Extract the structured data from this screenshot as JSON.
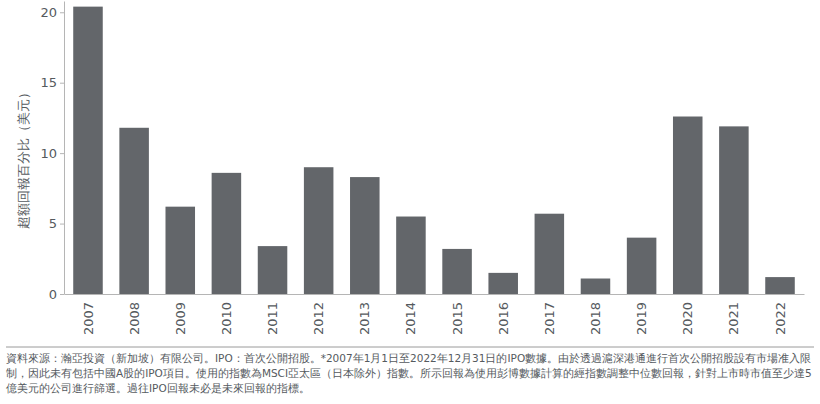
{
  "chart_data": {
    "type": "bar",
    "y_label": "超額回報百分比（美元）",
    "categories": [
      "2007",
      "2008",
      "2009",
      "2010",
      "2011",
      "2012",
      "2013",
      "2014",
      "2015",
      "2016",
      "2017",
      "2018",
      "2019",
      "2020",
      "2021",
      "2022"
    ],
    "values": [
      20.4,
      11.8,
      6.2,
      8.6,
      3.4,
      9.0,
      8.3,
      5.5,
      3.2,
      1.5,
      5.7,
      1.1,
      4.0,
      12.6,
      11.9,
      1.2
    ],
    "color": "#63666a",
    "ylim": [
      0,
      20.8
    ],
    "yticks": [
      0,
      5,
      10,
      15,
      20
    ],
    "grid": false,
    "note": "資料來源：瀚亞投資（新加坡）有限公司。IPO：首次公開招股。*2007年1月1日至2022年12月31日的IPO數據。由於透過滬深港通進行首次公開招股設有市場准入限制，因此未有包括中國A股的IPO項目。使用的指數為MSCI亞太區（日本除外）指數。所示回報為使用彭博數據計算的經指數調整中位數回報，針對上市時市值至少達5億美元的公司進行篩選。過往IPO回報未必是未來回報的指標。"
  }
}
